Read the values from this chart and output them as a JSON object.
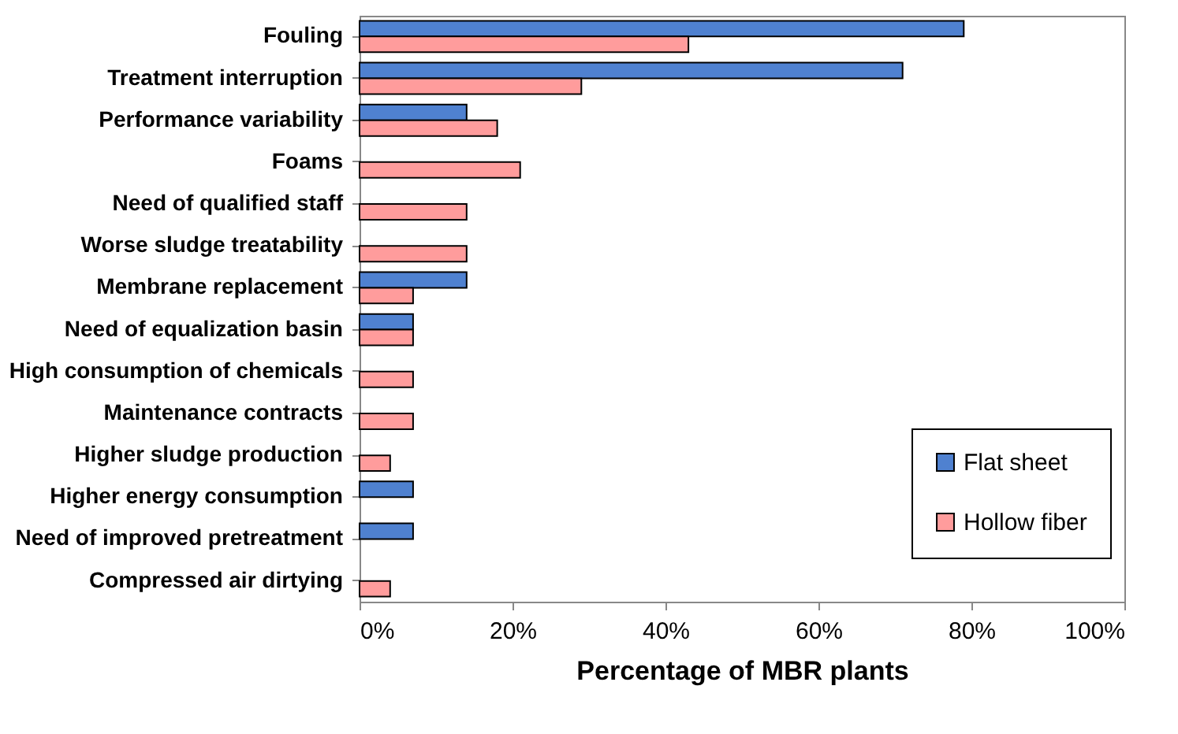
{
  "chart_data": {
    "type": "bar",
    "orientation": "horizontal",
    "xlabel": "Percentage of MBR plants",
    "categories": [
      "Fouling",
      "Treatment interruption",
      "Performance variability",
      "Foams",
      "Need of qualified staff",
      "Worse sludge treatability",
      "Membrane replacement",
      "Need of equalization basin",
      "High consumption of chemicals",
      "Maintenance contracts",
      "Higher sludge production",
      "Higher energy consumption",
      "Need of improved pretreatment",
      "Compressed air dirtying"
    ],
    "series": [
      {
        "name": "Flat sheet",
        "color": "#4f81d0",
        "values": [
          79,
          71,
          14,
          null,
          null,
          null,
          14,
          7,
          null,
          null,
          null,
          7,
          7,
          null
        ]
      },
      {
        "name": "Hollow fiber",
        "color": "#ff9c9c",
        "values": [
          43,
          29,
          18,
          21,
          14,
          14,
          7,
          7,
          7,
          7,
          4,
          null,
          null,
          4
        ]
      }
    ],
    "xlim": [
      0,
      100
    ],
    "xticks": [
      {
        "value": 0,
        "label": "0%"
      },
      {
        "value": 20,
        "label": "20%"
      },
      {
        "value": 40,
        "label": "40%"
      },
      {
        "value": 60,
        "label": "60%"
      },
      {
        "value": 80,
        "label": "80%"
      },
      {
        "value": 100,
        "label": "100%"
      }
    ],
    "grid": false,
    "legend": "bottom right"
  }
}
